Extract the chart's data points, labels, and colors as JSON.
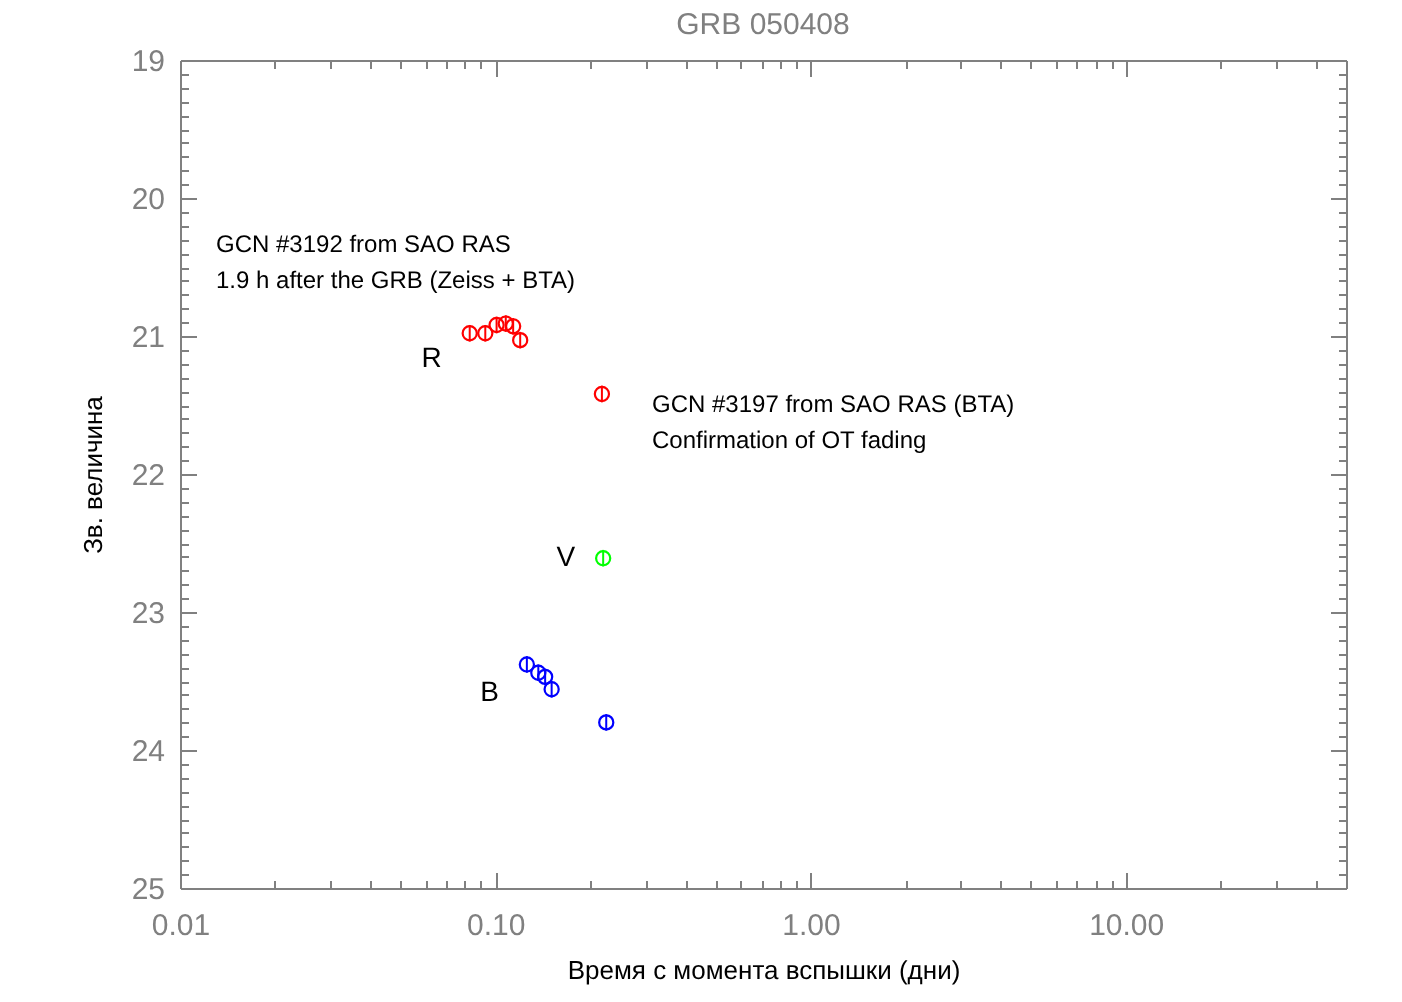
{
  "chart_data": {
    "type": "scatter",
    "title": "GRB 050408",
    "xlabel": "Время с момента вспышки (дни)",
    "ylabel": "Зв. величина",
    "annotations": [
      "GCN #3192 from SAO RAS\n1.9 h after the GRB (Zeiss + BTA)",
      "GCN #3197 from SAO RAS (BTA)\nConfirmation of OT fading"
    ],
    "series": [
      {
        "name": "R",
        "color": "#ff0000",
        "x": [
          0.083,
          0.093,
          0.101,
          0.108,
          0.114,
          0.12,
          0.218
        ],
        "values": [
          20.98,
          20.98,
          20.92,
          20.91,
          20.93,
          21.03,
          21.42
        ],
        "errors": [
          0.06,
          0.06,
          0.06,
          0.06,
          0.06,
          0.06,
          0.06
        ]
      },
      {
        "name": "V",
        "color": "#00ff00",
        "x": [
          0.22
        ],
        "values": [
          22.61
        ],
        "errors": [
          0.06
        ]
      },
      {
        "name": "B",
        "color": "#0000ff",
        "x": [
          0.126,
          0.137,
          0.144,
          0.151,
          0.225
        ],
        "values": [
          23.38,
          23.44,
          23.47,
          23.56,
          23.8
        ],
        "errors": [
          0.06,
          0.06,
          0.06,
          0.06,
          0.06
        ]
      }
    ],
    "log": "x",
    "xlim": [
      0.01,
      50
    ],
    "ylim": [
      25,
      19
    ],
    "marker": "circle",
    "xticks": [
      0.01,
      {
        "value": 0.02,
        "label": null
      },
      {
        "value": 0.03,
        "label": null
      },
      {
        "value": 0.04,
        "label": null
      },
      {
        "value": 0.05,
        "label": null
      },
      {
        "value": 0.06,
        "label": null
      },
      {
        "value": 0.07,
        "label": null
      },
      {
        "value": 0.08,
        "label": null
      },
      {
        "value": 0.09,
        "label": null
      },
      {
        "value": 0.1,
        "label": "0.10"
      },
      {
        "value": 0.2,
        "label": null
      },
      {
        "value": 0.3,
        "label": null
      },
      {
        "value": 0.4,
        "label": null
      },
      {
        "value": 0.5,
        "label": null
      },
      {
        "value": 0.6,
        "label": null
      },
      {
        "value": 0.7,
        "label": null
      },
      {
        "value": 0.8,
        "label": null
      },
      {
        "value": 0.9,
        "label": null
      },
      {
        "value": 1,
        "label": "1.00"
      },
      {
        "value": 2,
        "label": null
      },
      {
        "value": 3,
        "label": null
      },
      {
        "value": 4,
        "label": null
      },
      {
        "value": 5,
        "label": null
      },
      {
        "value": 6,
        "label": null
      },
      {
        "value": 7,
        "label": null
      },
      {
        "value": 8,
        "label": null
      },
      {
        "value": 9,
        "label": null
      },
      {
        "value": 10,
        "label": "10.00"
      },
      {
        "value": 20,
        "label": null
      },
      {
        "value": 30,
        "label": null
      },
      {
        "value": 40,
        "label": null
      }
    ],
    "yticks": [
      19,
      {
        "value": 19.1,
        "label": null
      },
      {
        "value": 19.2,
        "label": null
      },
      {
        "value": 19.3,
        "label": null
      },
      {
        "value": 19.4,
        "label": null
      },
      {
        "value": 19.5,
        "label": null
      },
      {
        "value": 19.6,
        "label": null
      },
      {
        "value": 19.7,
        "label": null
      },
      {
        "value": 19.8,
        "label": null
      },
      {
        "value": 19.9,
        "label": null
      },
      20,
      {
        "value": 20.1,
        "label": null
      },
      {
        "value": 20.2,
        "label": null
      },
      {
        "value": 20.3,
        "label": null
      },
      {
        "value": 20.4,
        "label": null
      },
      {
        "value": 20.5,
        "label": null
      },
      {
        "value": 20.6,
        "label": null
      },
      {
        "value": 20.7,
        "label": null
      },
      {
        "value": 20.8,
        "label": null
      },
      {
        "value": 20.9,
        "label": null
      },
      21,
      {
        "value": 21.1,
        "label": null
      },
      {
        "value": 21.2,
        "label": null
      },
      {
        "value": 21.3,
        "label": null
      },
      {
        "value": 21.4,
        "label": null
      },
      {
        "value": 21.5,
        "label": null
      },
      {
        "value": 21.6,
        "label": null
      },
      {
        "value": 21.7,
        "label": null
      },
      {
        "value": 21.8,
        "label": null
      },
      {
        "value": 21.9,
        "label": null
      },
      22,
      {
        "value": 22.1,
        "label": null
      },
      {
        "value": 22.2,
        "label": null
      },
      {
        "value": 22.3,
        "label": null
      },
      {
        "value": 22.4,
        "label": null
      },
      {
        "value": 22.5,
        "label": null
      },
      {
        "value": 22.6,
        "label": null
      },
      {
        "value": 22.7,
        "label": null
      },
      {
        "value": 22.8,
        "label": null
      },
      {
        "value": 22.9,
        "label": null
      },
      23,
      {
        "value": 23.1,
        "label": null
      },
      {
        "value": 23.2,
        "label": null
      },
      {
        "value": 23.3,
        "label": null
      },
      {
        "value": 23.4,
        "label": null
      },
      {
        "value": 23.5,
        "label": null
      },
      {
        "value": 23.6,
        "label": null
      },
      {
        "value": 23.7,
        "label": null
      },
      {
        "value": 23.8,
        "label": null
      },
      {
        "value": 23.9,
        "label": null
      },
      24,
      {
        "value": 24.1,
        "label": null
      },
      {
        "value": 24.2,
        "label": null
      },
      {
        "value": 24.3,
        "label": null
      },
      {
        "value": 24.4,
        "label": null
      },
      {
        "value": 24.5,
        "label": null
      },
      {
        "value": 24.6,
        "label": null
      },
      {
        "value": 24.7,
        "label": null
      },
      {
        "value": 24.8,
        "label": null
      },
      {
        "value": 24.9,
        "label": null
      },
      25
    ]
  }
}
